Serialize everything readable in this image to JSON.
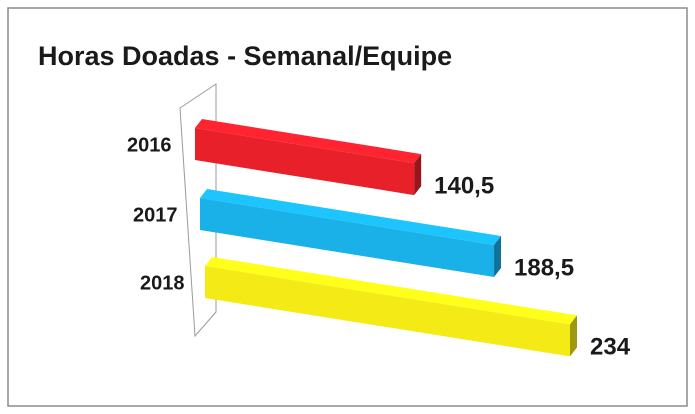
{
  "chart_data": {
    "type": "bar3d",
    "orientation": "horizontal",
    "title": "Horas Doadas - Semanal/Equipe",
    "categories": [
      "2016",
      "2017",
      "2018"
    ],
    "values": [
      140.5,
      188.5,
      234
    ],
    "value_labels": [
      "140,5",
      "188,5",
      "234"
    ],
    "colors": [
      "#e8202a",
      "#1ab0e8",
      "#f3ea16"
    ]
  }
}
